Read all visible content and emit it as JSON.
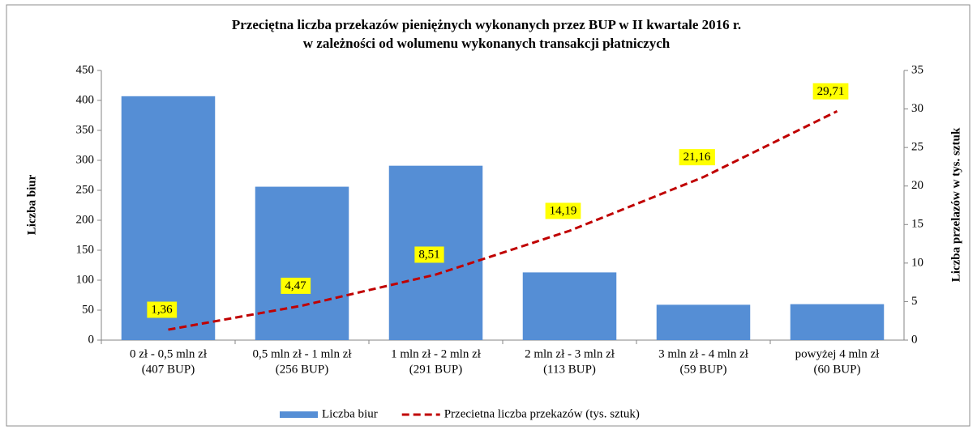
{
  "chart_data": {
    "type": "bar",
    "title": [
      "Przeciętna liczba przekazów pieniężnych wykonanych przez BUP w II kwartale 2016 r.",
      "w zależności od wolumenu wykonanych transakcji płatniczych"
    ],
    "categories": [
      [
        "0 zł  - 0,5 mln zł",
        "(407 BUP)"
      ],
      [
        "0,5 mln zł - 1 mln zł",
        "(256 BUP)"
      ],
      [
        "1 mln zł - 2 mln zł",
        "(291 BUP)"
      ],
      [
        "2 mln zł - 3 mln zł",
        "(113 BUP)"
      ],
      [
        "3 mln zł - 4 mln zł",
        "(59 BUP)"
      ],
      [
        "powyżej   4  mln zł",
        "(60 BUP)"
      ]
    ],
    "series": [
      {
        "name": "Liczba biur",
        "color": "#558ed5",
        "values": [
          407,
          256,
          291,
          113,
          59,
          60
        ]
      },
      {
        "name": "Przecietna liczba przekazów (tys. sztuk)",
        "color": "#c00000",
        "type": "line",
        "axis": "y2",
        "dashed": true,
        "values": [
          1.36,
          4.47,
          8.51,
          14.19,
          21.16,
          29.71
        ],
        "value_labels": [
          "1,36",
          "4,47",
          "8,51",
          "14,19",
          "21,16",
          "29,71"
        ],
        "label_background": "#ffff00"
      }
    ],
    "ylabel": "Liczba biur",
    "y2label": "Liczba przelazów w tys. sztuk",
    "ylim": [
      0,
      450
    ],
    "yticks": [
      0,
      50,
      100,
      150,
      200,
      250,
      300,
      350,
      400,
      450
    ],
    "y2lim": [
      0,
      35
    ],
    "y2ticks": [
      0,
      5,
      10,
      15,
      20,
      25,
      30,
      35
    ],
    "legend": "bottom"
  }
}
